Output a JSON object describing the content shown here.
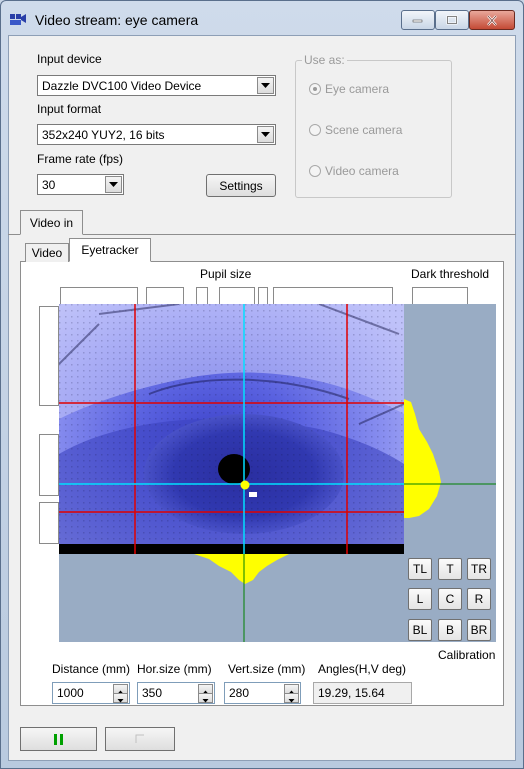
{
  "window": {
    "title": "Video stream: eye camera"
  },
  "input_device": {
    "label": "Input device",
    "value": "Dazzle DVC100 Video Device"
  },
  "input_format": {
    "label": "Input format",
    "value": "352x240 YUY2, 16 bits"
  },
  "frame_rate": {
    "label": "Frame rate (fps)",
    "value": "30"
  },
  "settings_button": "Settings",
  "use_as": {
    "title": "Use as:",
    "options": [
      "Eye camera",
      "Scene camera",
      "Video camera"
    ],
    "selected": "Eye camera"
  },
  "outer_tab": "Video in",
  "inner_tabs": [
    "Video",
    "Eyetracker"
  ],
  "active_inner_tab": "Eyetracker",
  "pupil_size_label": "Pupil size",
  "dark_threshold_label": "Dark threshold",
  "calibration": {
    "buttons": [
      "TL",
      "T",
      "TR",
      "L",
      "C",
      "R",
      "BL",
      "B",
      "BR"
    ],
    "label": "Calibration"
  },
  "fields": {
    "distance": {
      "label": "Distance (mm)",
      "value": "1000"
    },
    "hor_size": {
      "label": "Hor.size (mm)",
      "value": "350"
    },
    "vert_size": {
      "label": "Vert.size (mm)",
      "value": "280"
    },
    "angles": {
      "label": "Angles(H,V deg)",
      "value": "19.29, 15.64"
    }
  },
  "colors": {
    "pause_icon": "#00a000",
    "crosshair_red": "#e00000",
    "crosshair_cyan": "#00e0ff",
    "crosshair_green": "#008000",
    "projection_yellow": "#ffff00",
    "plot_background": "#99acc4"
  }
}
